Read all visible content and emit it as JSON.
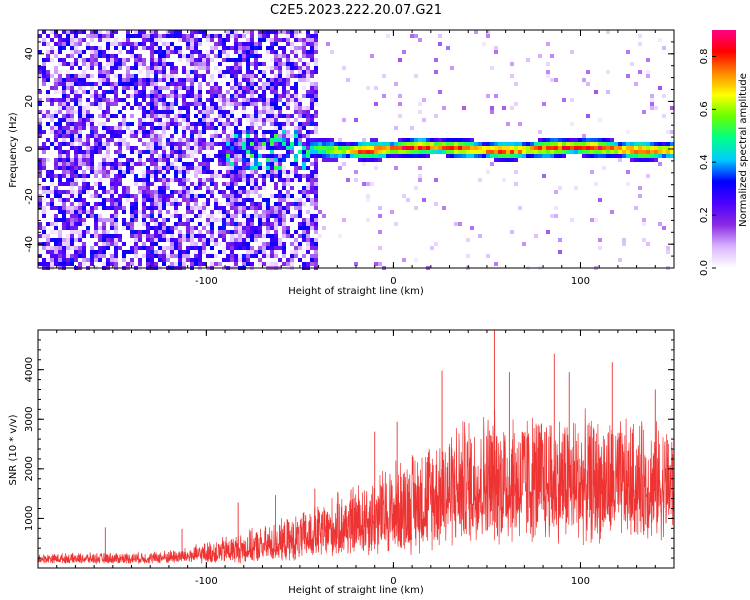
{
  "title": "C2E5.2023.222.20.07.G21",
  "chart_data": [
    {
      "type": "heatmap",
      "xlabel": "Height of straight line (km)",
      "ylabel": "Frequency (Hz)",
      "xlim": [
        -190,
        150
      ],
      "ylim": [
        -50,
        50
      ],
      "xticks": [
        -100,
        0,
        100
      ],
      "yticks": [
        -40,
        -20,
        0,
        20,
        40
      ],
      "colorbar": {
        "label": "Normalized spectral amplitude",
        "range": [
          0.0,
          0.9
        ],
        "ticks": [
          0.0,
          0.2,
          0.4,
          0.6,
          0.8
        ],
        "colormap": [
          "#ffffff",
          "#d9b3ff",
          "#8a2be2",
          "#4b00ff",
          "#0000ff",
          "#00ccff",
          "#00ff88",
          "#66ff00",
          "#ffff00",
          "#ff8800",
          "#ff0000",
          "#ff0088"
        ]
      },
      "features": {
        "noise_region_x": [
          -190,
          -40
        ],
        "signal_band_x": [
          -45,
          150
        ],
        "signal_band_center_hz": 0,
        "signal_band_halfwidth_hz": 3,
        "peak_amplitude": 0.85
      }
    },
    {
      "type": "line",
      "xlabel": "Height of straight line (km)",
      "ylabel": "SNR (10 * v/v)",
      "xlim": [
        -190,
        150
      ],
      "ylim": [
        0,
        4800
      ],
      "xticks": [
        -100,
        0,
        100
      ],
      "yticks": [
        1000,
        2000,
        3000,
        4000
      ],
      "color": "#ee3333",
      "envelope": {
        "x": [
          -190,
          -160,
          -130,
          -110,
          -90,
          -70,
          -50,
          -30,
          -10,
          10,
          30,
          50,
          70,
          90,
          110,
          130,
          150
        ],
        "baseline": [
          180,
          180,
          190,
          230,
          320,
          420,
          550,
          760,
          950,
          1200,
          1500,
          1650,
          1650,
          1650,
          1600,
          1600,
          1600
        ],
        "spread": [
          120,
          140,
          150,
          200,
          350,
          450,
          600,
          800,
          1050,
          1300,
          1550,
          1700,
          1700,
          1650,
          1600,
          1500,
          1450
        ]
      },
      "peaks": [
        {
          "x": -154,
          "y": 820
        },
        {
          "x": -113,
          "y": 790
        },
        {
          "x": -83,
          "y": 1320
        },
        {
          "x": -63,
          "y": 1470
        },
        {
          "x": -42,
          "y": 1600
        },
        {
          "x": -10,
          "y": 2750
        },
        {
          "x": 2,
          "y": 2950
        },
        {
          "x": 26,
          "y": 3980
        },
        {
          "x": 54,
          "y": 4800
        },
        {
          "x": 62,
          "y": 3950
        },
        {
          "x": 86,
          "y": 4320
        },
        {
          "x": 94,
          "y": 3950
        },
        {
          "x": 117,
          "y": 4150
        },
        {
          "x": 140,
          "y": 3600
        }
      ]
    }
  ]
}
